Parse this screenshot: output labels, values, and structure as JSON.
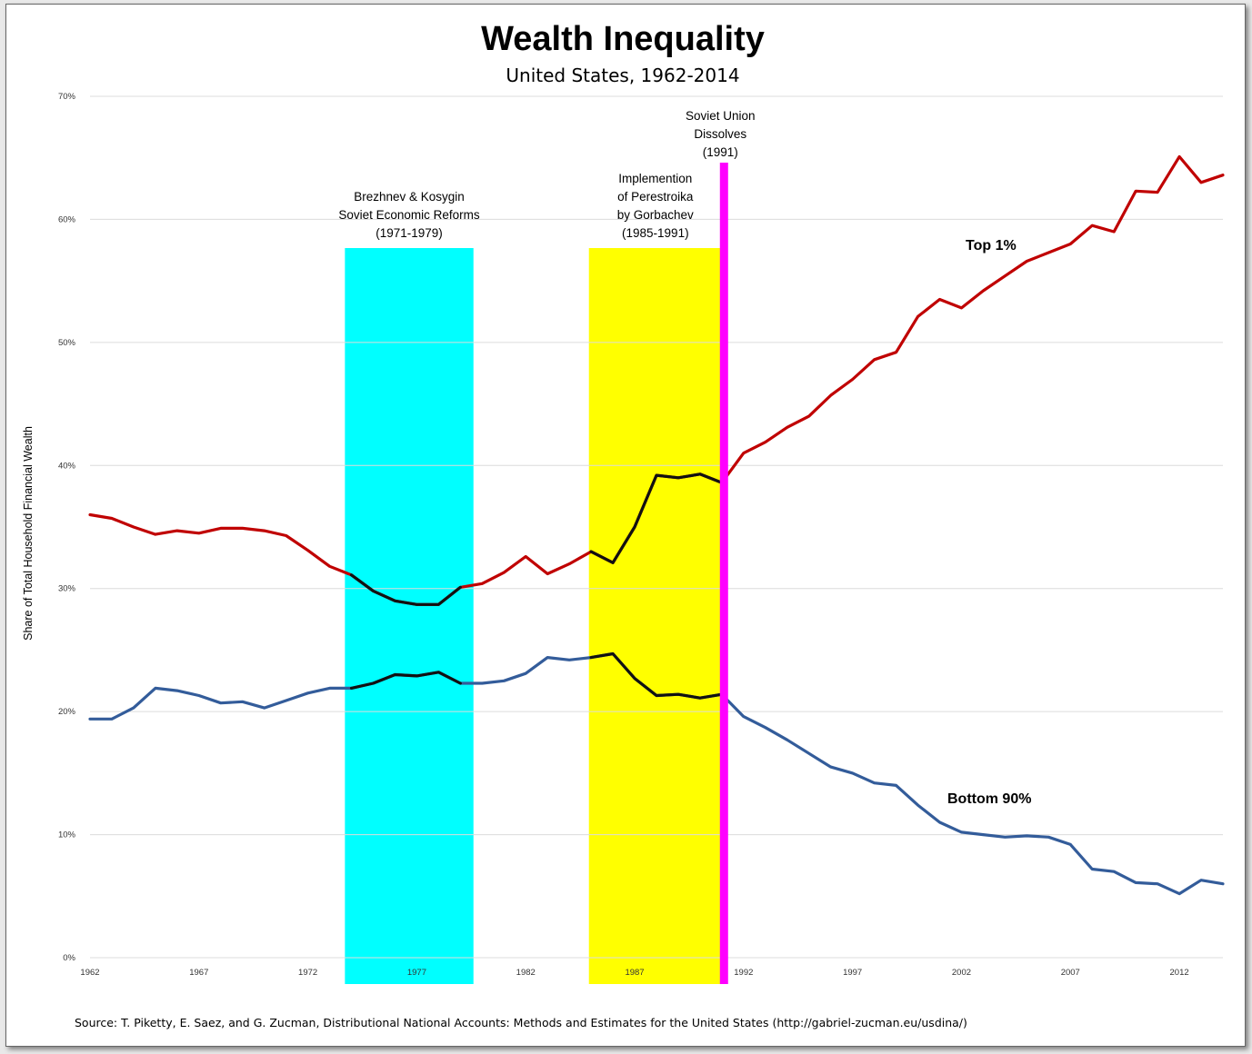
{
  "colors": {
    "top1": "#c00000",
    "bottom90": "#335c9a",
    "highlight_line": "#111111",
    "brezhnev_band": "#00ffff",
    "perestroika_band": "#ffff00",
    "dissolve_line": "#ff00ff"
  },
  "chart_data": {
    "type": "line",
    "title": "Wealth Inequality",
    "subtitle": "United States, 1962-2014",
    "ylabel": "Share of Total Household Financial Wealth",
    "xlabel": "",
    "xlim": [
      1962,
      2014
    ],
    "ylim": [
      0,
      70
    ],
    "x_ticks": [
      "1962",
      "1967",
      "1972",
      "1977",
      "1982",
      "1987",
      "1992",
      "1997",
      "2002",
      "2007",
      "2012"
    ],
    "y_ticks": [
      "0%",
      "10%",
      "20%",
      "30%",
      "40%",
      "50%",
      "60%",
      "70%"
    ],
    "x": [
      1962,
      1963,
      1964,
      1965,
      1966,
      1967,
      1968,
      1969,
      1970,
      1971,
      1972,
      1973,
      1974,
      1975,
      1976,
      1977,
      1978,
      1979,
      1980,
      1981,
      1982,
      1983,
      1984,
      1985,
      1986,
      1987,
      1988,
      1989,
      1990,
      1991,
      1992,
      1993,
      1994,
      1995,
      1996,
      1997,
      1998,
      1999,
      2000,
      2001,
      2002,
      2003,
      2004,
      2005,
      2006,
      2007,
      2008,
      2009,
      2010,
      2011,
      2012,
      2013,
      2014
    ],
    "series": [
      {
        "name": "Top 1%",
        "label": "Top 1%",
        "values": [
          36.0,
          35.7,
          35.0,
          34.4,
          34.7,
          34.5,
          34.9,
          34.9,
          34.7,
          34.3,
          33.1,
          31.8,
          31.1,
          29.8,
          29.0,
          28.7,
          28.7,
          30.1,
          30.4,
          31.3,
          32.6,
          31.2,
          32.0,
          33.0,
          32.1,
          35.0,
          39.2,
          39.0,
          39.3,
          38.6,
          41.0,
          41.9,
          43.1,
          44.0,
          45.7,
          47.0,
          48.6,
          49.2,
          52.1,
          53.5,
          52.8,
          54.2,
          55.4,
          56.6,
          57.3,
          58.0,
          59.5,
          59.0,
          62.3,
          62.2,
          65.1,
          63.0,
          63.6
        ]
      },
      {
        "name": "Bottom 90%",
        "label": "Bottom 90%",
        "values": [
          19.4,
          19.4,
          20.3,
          21.9,
          21.7,
          21.3,
          20.7,
          20.8,
          20.3,
          20.9,
          21.5,
          21.9,
          21.9,
          22.3,
          23.0,
          22.9,
          23.2,
          22.3,
          22.3,
          22.5,
          23.1,
          24.4,
          24.2,
          24.4,
          24.7,
          22.7,
          21.3,
          21.4,
          21.1,
          21.4,
          19.6,
          18.7,
          17.7,
          16.6,
          15.5,
          15.0,
          14.2,
          14.0,
          12.4,
          11.0,
          10.2,
          10.0,
          9.8,
          9.9,
          9.8,
          9.2,
          7.2,
          7.0,
          6.1,
          6.0,
          5.2,
          6.3,
          6.0
        ]
      }
    ],
    "highlight_segments": [
      [
        1974,
        1979
      ],
      [
        1985,
        1991
      ]
    ],
    "bands": [
      {
        "name": "brezhnev-kosygin-reforms",
        "start": 1973.7,
        "end": 1979.6,
        "label_lines": [
          "Brezhnev & Kosygin",
          "Soviet Economic Reforms",
          "(1971-1979)"
        ]
      },
      {
        "name": "perestroika",
        "start": 1984.9,
        "end": 1991,
        "label_lines": [
          "Implemention",
          "of Perestroika",
          "by Gorbachev",
          "(1985-1991)"
        ]
      }
    ],
    "event_line": {
      "year": 1991.1,
      "label_lines": [
        "Soviet Union",
        "Dissolves",
        "(1991)"
      ]
    },
    "source": "Source: T. Piketty, E. Saez, and G. Zucman,  Distributional National Accounts: Methods and Estimates for the United States (http://gabriel-zucman.eu/usdina/)"
  }
}
